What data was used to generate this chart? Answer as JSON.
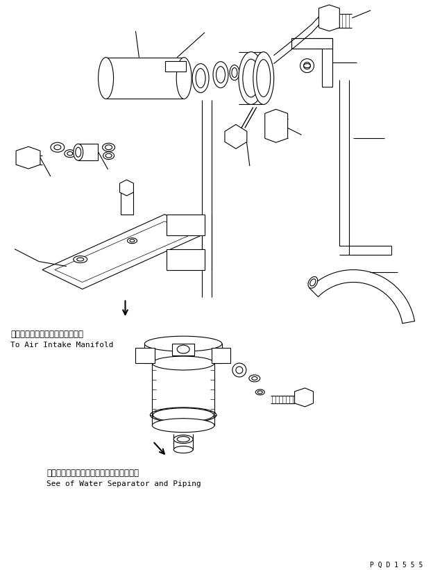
{
  "bg_color": "#ffffff",
  "line_color": "#000000",
  "text_color": "#000000",
  "fig_width": 6.24,
  "fig_height": 8.21,
  "dpi": 100,
  "annotation1_jp": "エアーインテークマニホールドヘ",
  "annotation1_en": "To Air Intake Manifold",
  "annotation2_jp": "ウォータセパレータおよびパイピング参照",
  "annotation2_en": "See of Water Separator and Piping",
  "page_id": "P Q D 1 5 5 5"
}
